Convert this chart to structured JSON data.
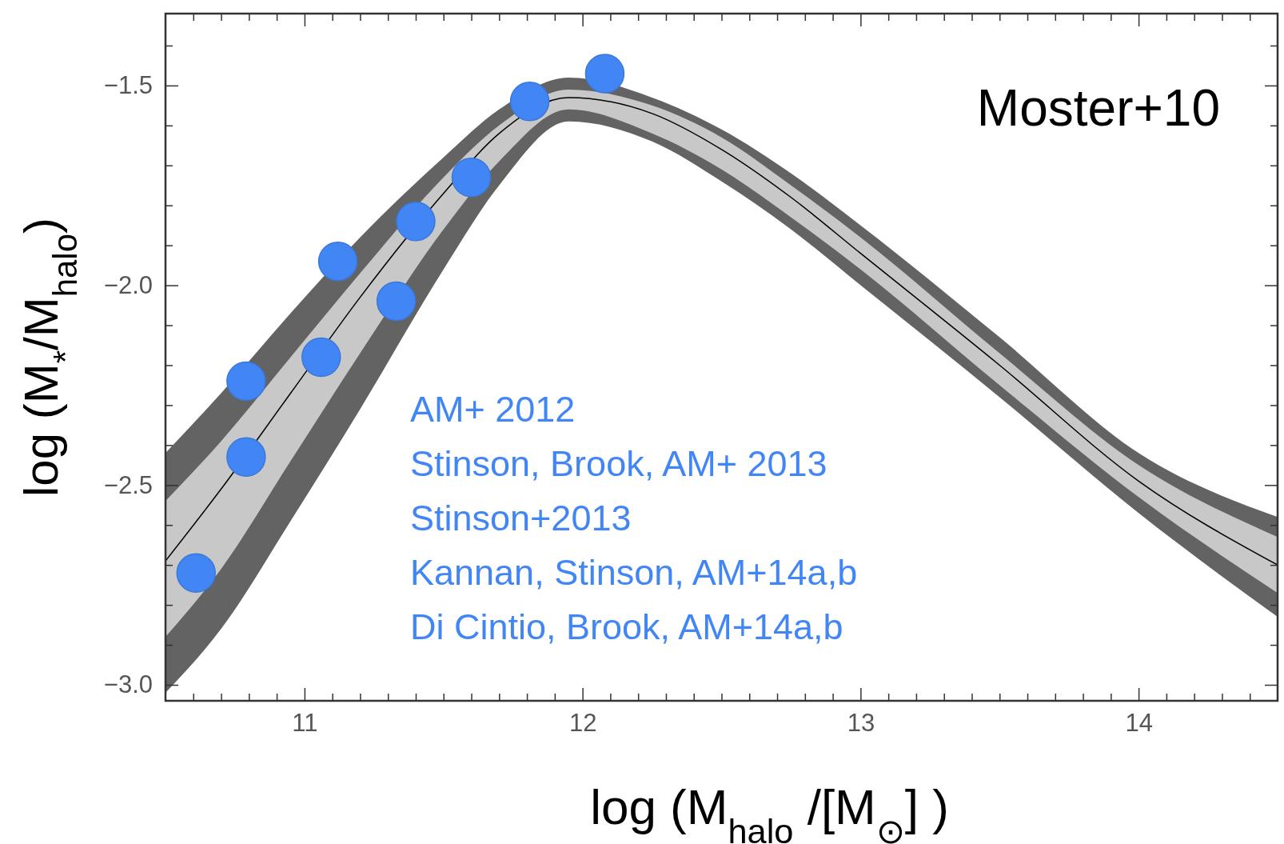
{
  "chart_data": {
    "type": "line",
    "xlabel": "log (M$_{halo}$ /[M$_{⊙}$] )",
    "ylabel": "log (M$_{*}$/M$_{halo}$)",
    "xlim": [
      10.5,
      14.5
    ],
    "ylim": [
      -3.04,
      -1.32
    ],
    "xticks": [
      {
        "value": 10.6,
        "label": null
      },
      {
        "value": 10.7,
        "label": null
      },
      {
        "value": 10.8,
        "label": null
      },
      {
        "value": 10.9,
        "label": null
      },
      {
        "value": 11,
        "label": "11"
      },
      {
        "value": 11.1,
        "label": null
      },
      {
        "value": 11.2,
        "label": null
      },
      {
        "value": 11.3,
        "label": null
      },
      {
        "value": 11.4,
        "label": null
      },
      {
        "value": 11.5,
        "label": null
      },
      {
        "value": 11.6,
        "label": null
      },
      {
        "value": 11.7,
        "label": null
      },
      {
        "value": 11.8,
        "label": null
      },
      {
        "value": 11.9,
        "label": null
      },
      {
        "value": 12,
        "label": "12"
      },
      {
        "value": 12.1,
        "label": null
      },
      {
        "value": 12.2,
        "label": null
      },
      {
        "value": 12.3,
        "label": null
      },
      {
        "value": 12.4,
        "label": null
      },
      {
        "value": 12.5,
        "label": null
      },
      {
        "value": 12.6,
        "label": null
      },
      {
        "value": 12.7,
        "label": null
      },
      {
        "value": 12.8,
        "label": null
      },
      {
        "value": 12.9,
        "label": null
      },
      {
        "value": 13,
        "label": "13"
      },
      {
        "value": 13.1,
        "label": null
      },
      {
        "value": 13.2,
        "label": null
      },
      {
        "value": 13.3,
        "label": null
      },
      {
        "value": 13.4,
        "label": null
      },
      {
        "value": 13.5,
        "label": null
      },
      {
        "value": 13.6,
        "label": null
      },
      {
        "value": 13.7,
        "label": null
      },
      {
        "value": 13.8,
        "label": null
      },
      {
        "value": 13.9,
        "label": null
      },
      {
        "value": 14,
        "label": "14"
      },
      {
        "value": 14.1,
        "label": null
      },
      {
        "value": 14.2,
        "label": null
      },
      {
        "value": 14.3,
        "label": null
      },
      {
        "value": 14.4,
        "label": null
      }
    ],
    "yticks": [
      {
        "value": -3.0,
        "label": "−3.0"
      },
      {
        "value": -2.9,
        "label": null
      },
      {
        "value": -2.8,
        "label": null
      },
      {
        "value": -2.7,
        "label": null
      },
      {
        "value": -2.6,
        "label": null
      },
      {
        "value": -2.5,
        "label": "−2.5"
      },
      {
        "value": -2.4,
        "label": null
      },
      {
        "value": -2.3,
        "label": null
      },
      {
        "value": -2.2,
        "label": null
      },
      {
        "value": -2.1,
        "label": null
      },
      {
        "value": -2.0,
        "label": "−2.0"
      },
      {
        "value": -1.9,
        "label": null
      },
      {
        "value": -1.8,
        "label": null
      },
      {
        "value": -1.7,
        "label": null
      },
      {
        "value": -1.6,
        "label": null
      },
      {
        "value": -1.5,
        "label": "−1.5"
      },
      {
        "value": -1.4,
        "label": null
      }
    ],
    "x": [
      10.5,
      10.7,
      10.95,
      11.2,
      11.5,
      11.7,
      11.95,
      12.25,
      12.5,
      12.75,
      13,
      13.5,
      14,
      14.5
    ],
    "series": [
      {
        "color": "#636363",
        "values": [
          null,
          null,
          null,
          null,
          null,
          null,
          null,
          null,
          null,
          null,
          null,
          null,
          null,
          null
        ],
        "upper": [
          -2.42,
          -2.27,
          -2.07,
          -1.88,
          -1.68,
          -1.56,
          -1.48,
          -1.53,
          -1.61,
          -1.72,
          -1.85,
          -2.13,
          -2.42,
          -2.58
        ],
        "lower": [
          -3.02,
          -2.86,
          -2.59,
          -2.31,
          -1.96,
          -1.75,
          -1.59,
          -1.64,
          -1.74,
          -1.86,
          -2.0,
          -2.28,
          -2.57,
          -2.83
        ]
      },
      {
        "color": "#c8c8c8",
        "values": [
          null,
          null,
          null,
          null,
          null,
          null,
          null,
          null,
          null,
          null,
          null,
          null,
          null,
          null
        ],
        "upper": [
          -2.54,
          -2.39,
          -2.18,
          -1.97,
          -1.73,
          -1.6,
          -1.51,
          -1.55,
          -1.63,
          -1.75,
          -1.88,
          -2.17,
          -2.45,
          -2.63
        ],
        "lower": [
          -2.88,
          -2.71,
          -2.44,
          -2.17,
          -1.86,
          -1.69,
          -1.56,
          -1.62,
          -1.71,
          -1.83,
          -1.96,
          -2.25,
          -2.53,
          -2.77
        ]
      },
      {
        "color": "#000000",
        "values": [
          -2.69,
          -2.51,
          -2.27,
          -2.03,
          -1.77,
          -1.62,
          -1.53,
          -1.57,
          -1.66,
          -1.78,
          -1.92,
          -2.2,
          -2.49,
          -2.7
        ]
      },
      {
        "type": "scatter",
        "color": "#4286f5",
        "marker": "circle",
        "x": [
          10.61,
          10.79,
          10.79,
          11.06,
          11.12,
          11.33,
          11.4,
          11.6,
          11.81,
          12.08
        ],
        "values": [
          -2.72,
          -2.43,
          -2.24,
          -2.18,
          -1.94,
          -2.04,
          -1.84,
          -1.73,
          -1.54,
          -1.47
        ]
      }
    ],
    "annotations": [
      "Moster+10",
      "AM+ 2012",
      "Stinson, Brook, AM+ 2013",
      "Stinson+2013",
      "Kannan, Stinson, AM+14a,b",
      "Di Cintio, Brook, AM+14a,b"
    ]
  }
}
